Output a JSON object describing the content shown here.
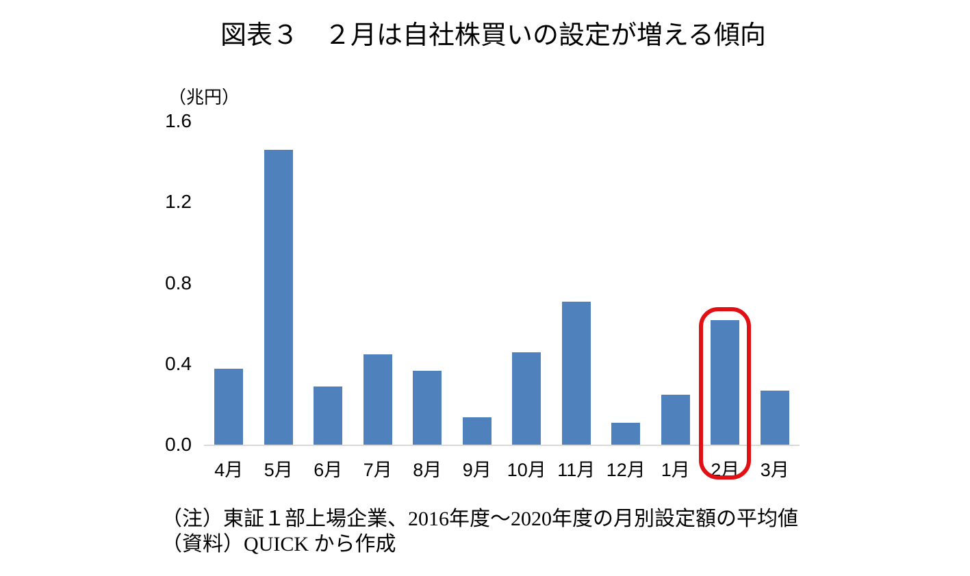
{
  "title": "図表３　２月は自社株買いの設定が増える傾向",
  "chart_data": {
    "type": "bar",
    "title": "図表３　２月は自社株買いの設定が増える傾向",
    "unit_label": "（兆円）",
    "categories": [
      "4月",
      "5月",
      "6月",
      "7月",
      "8月",
      "9月",
      "10月",
      "11月",
      "12月",
      "1月",
      "2月",
      "3月"
    ],
    "values": [
      0.38,
      1.46,
      0.29,
      0.45,
      0.37,
      0.14,
      0.46,
      0.71,
      0.11,
      0.25,
      0.62,
      0.27
    ],
    "y_tick_labels": [
      "0.0",
      "0.4",
      "0.8",
      "1.2",
      "1.6"
    ],
    "ylim": [
      0,
      1.6
    ],
    "grid": false,
    "legend": "none",
    "bar_color": "#4f81bd",
    "axis_line_color": "#d9d9d9",
    "highlight": {
      "category": "2月",
      "index": 10,
      "color": "#e11015"
    }
  },
  "notes": {
    "line1": "（注）東証１部上場企業、2016年度～2020年度の月別設定額の平均値",
    "line2": "（資料）QUICK から作成"
  }
}
